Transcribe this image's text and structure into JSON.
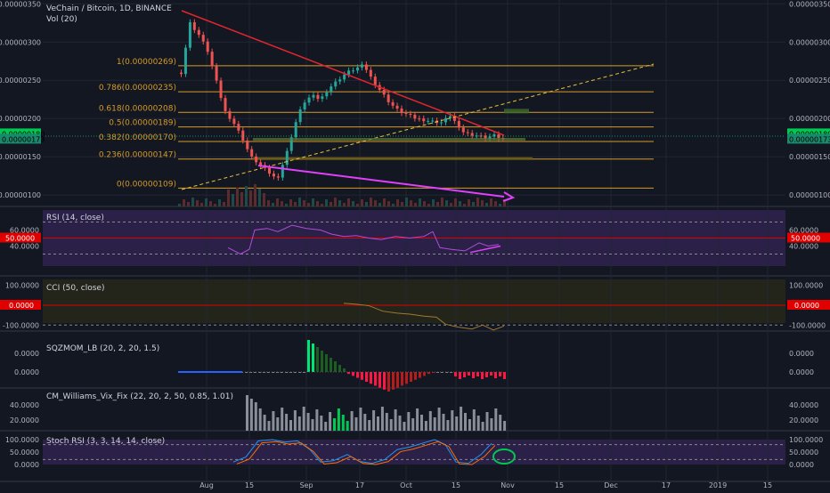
{
  "header": {
    "symbol_title": "VeChain / Bitcoin, 1D, BINANCE",
    "volume_label": "Vol (20)"
  },
  "colors": {
    "up": "#26a69a",
    "down": "#ef5350",
    "fib": "#d49a2b",
    "trend_red": "#e0262e",
    "trend_dash": "#e7c13a",
    "arrow": "#e040fb",
    "rsi": "#b04cd8",
    "cci": "#a07a2e",
    "grid": "#222633",
    "axis_text": "#b2b5be",
    "green_tag": "#00c853",
    "red_tag": "#e00000"
  },
  "price_axis": {
    "ticks": [
      "0.00000350",
      "0.00000300",
      "0.00000250",
      "0.00000200",
      "0.00000150",
      "0.00000100"
    ],
    "current_high_tag": "0.00000180",
    "current_tag": "0.00000173"
  },
  "x_axis": {
    "ticks": [
      "Aug",
      "15",
      "Sep",
      "17",
      "Oct",
      "15",
      "Nov",
      "15",
      "Dec",
      "17",
      "2019",
      "15"
    ]
  },
  "fib_levels": [
    {
      "label": "1(0.00000269)",
      "value": 2.69e-06
    },
    {
      "label": "0.786(0.00000235)",
      "value": 2.35e-06
    },
    {
      "label": "0.618(0.00000208)",
      "value": 2.08e-06
    },
    {
      "label": "0.5(0.00000189)",
      "value": 1.89e-06
    },
    {
      "label": "0.382(0.00000170)",
      "value": 1.7e-06
    },
    {
      "label": "0.236(0.00000147)",
      "value": 1.47e-06
    },
    {
      "label": "0(0.00000109)",
      "value": 1.09e-06
    }
  ],
  "chart_data": {
    "type": "line",
    "title": "VeChain / Bitcoin, 1D, BINANCE",
    "series": [
      {
        "name": "VeChain / Bitcoin",
        "values": [
          2.6e-06,
          3.25e-06,
          3.1e-06,
          2.9e-06,
          2.5e-06,
          2.1e-06,
          1.95e-06,
          1.75e-06,
          1.5e-06,
          1.4e-06,
          1.3e-06,
          1.2e-06,
          1.5e-06,
          1.9e-06,
          2.2e-06,
          2.3e-06,
          2.25e-06,
          2.4e-06,
          2.5e-06,
          2.6e-06,
          2.65e-06,
          2.7e-06,
          2.5e-06,
          2.35e-06,
          2.2e-06,
          2.1e-06,
          2.05e-06,
          2e-06,
          1.98e-06,
          1.96e-06,
          1.95e-06,
          2.05e-06,
          1.85e-06,
          1.8e-06,
          1.78e-06,
          1.75e-06,
          1.78e-06,
          1.73e-06
        ]
      }
    ],
    "ylim": [
      8.5e-07,
      3.55e-06
    ]
  },
  "panes": {
    "rsi": {
      "label": "RSI (14, close)",
      "ticks": [
        "60.0000",
        "40.0000"
      ],
      "level_tag": "50.0000",
      "ylim": [
        15,
        85
      ]
    },
    "cci": {
      "label": "CCI (50, close)",
      "ticks": [
        "100.0000",
        "-100.0000"
      ],
      "level_tag": "0.0000",
      "ylim": [
        -130,
        130
      ]
    },
    "sqzmom": {
      "label": "SQZMOM_LB (20, 2, 20, 1.5)",
      "ticks": [
        "0.0000",
        "0.0000"
      ]
    },
    "williams": {
      "label": "CM_Williams_Vix_Fix (22, 20, 2, 50, 0.85, 1.01)",
      "ticks": [
        "40.0000",
        "20.0000"
      ]
    },
    "stochrsi": {
      "label": "Stoch RSI (3, 3, 14, 14, close)",
      "ticks": [
        "100.0000",
        "50.0000",
        "0.0000"
      ]
    }
  }
}
